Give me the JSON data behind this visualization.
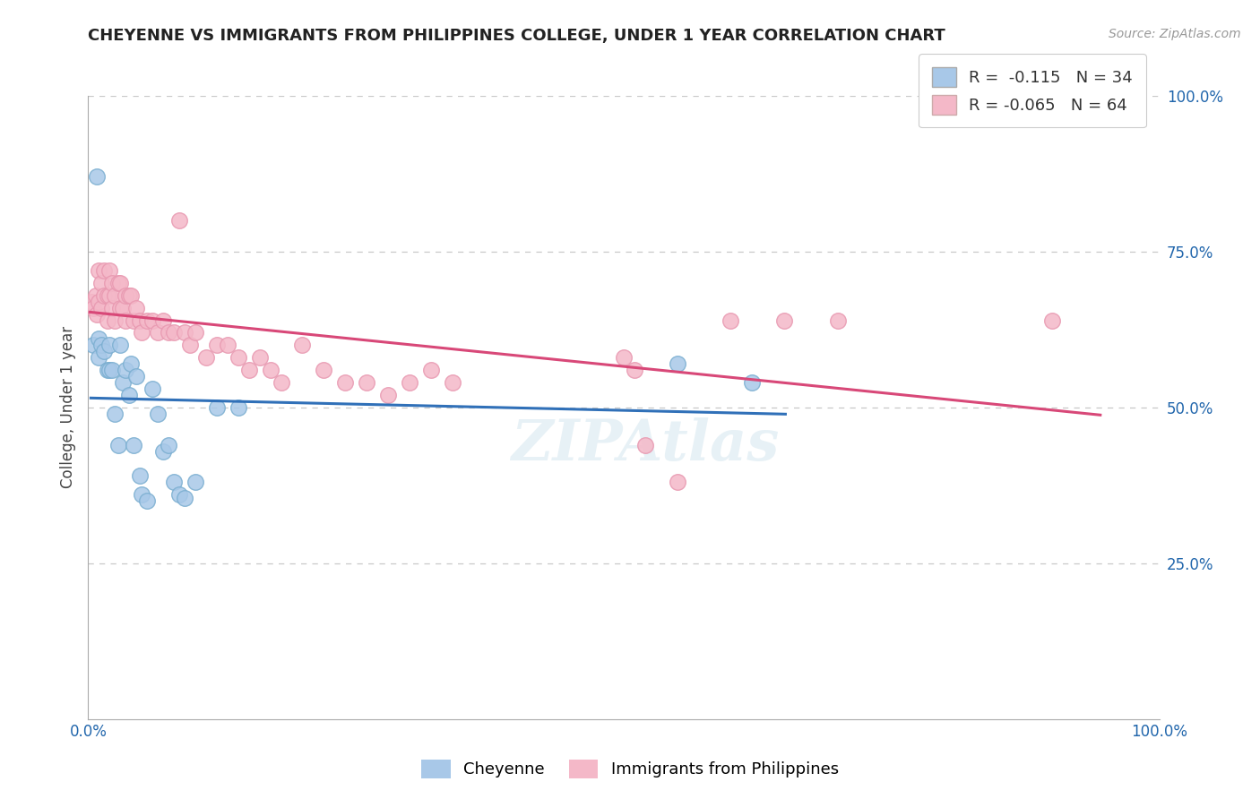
{
  "title": "CHEYENNE VS IMMIGRANTS FROM PHILIPPINES COLLEGE, UNDER 1 YEAR CORRELATION CHART",
  "source": "Source: ZipAtlas.com",
  "ylabel": "College, Under 1 year",
  "xlim": [
    0.0,
    1.0
  ],
  "ylim": [
    0.0,
    1.0
  ],
  "legend1_r": "-0.115",
  "legend1_n": "34",
  "legend2_r": "-0.065",
  "legend2_n": "64",
  "blue_color": "#a8c8e8",
  "pink_color": "#f4b8c8",
  "blue_edge_color": "#7aaed0",
  "pink_edge_color": "#e898b0",
  "blue_line_color": "#3070b8",
  "pink_line_color": "#d84878",
  "cheyenne_x": [
    0.005,
    0.008,
    0.01,
    0.01,
    0.012,
    0.015,
    0.018,
    0.02,
    0.02,
    0.022,
    0.025,
    0.028,
    0.03,
    0.032,
    0.035,
    0.038,
    0.04,
    0.042,
    0.045,
    0.048,
    0.05,
    0.055,
    0.06,
    0.065,
    0.07,
    0.075,
    0.08,
    0.085,
    0.09,
    0.1,
    0.12,
    0.14,
    0.55,
    0.62
  ],
  "cheyenne_y": [
    0.6,
    0.87,
    0.61,
    0.58,
    0.6,
    0.59,
    0.56,
    0.56,
    0.6,
    0.56,
    0.49,
    0.44,
    0.6,
    0.54,
    0.56,
    0.52,
    0.57,
    0.44,
    0.55,
    0.39,
    0.36,
    0.35,
    0.53,
    0.49,
    0.43,
    0.44,
    0.38,
    0.36,
    0.355,
    0.38,
    0.5,
    0.5,
    0.57,
    0.54
  ],
  "philippines_x": [
    0.003,
    0.005,
    0.007,
    0.008,
    0.01,
    0.01,
    0.012,
    0.012,
    0.015,
    0.015,
    0.018,
    0.018,
    0.02,
    0.02,
    0.022,
    0.022,
    0.025,
    0.025,
    0.028,
    0.03,
    0.03,
    0.032,
    0.035,
    0.035,
    0.038,
    0.04,
    0.042,
    0.045,
    0.048,
    0.05,
    0.055,
    0.06,
    0.065,
    0.07,
    0.075,
    0.08,
    0.085,
    0.09,
    0.095,
    0.1,
    0.11,
    0.12,
    0.13,
    0.14,
    0.15,
    0.16,
    0.17,
    0.18,
    0.2,
    0.22,
    0.24,
    0.26,
    0.28,
    0.3,
    0.32,
    0.34,
    0.5,
    0.51,
    0.52,
    0.55,
    0.6,
    0.65,
    0.7,
    0.9
  ],
  "philippines_y": [
    0.67,
    0.66,
    0.68,
    0.65,
    0.72,
    0.67,
    0.7,
    0.66,
    0.72,
    0.68,
    0.68,
    0.64,
    0.72,
    0.68,
    0.7,
    0.66,
    0.68,
    0.64,
    0.7,
    0.7,
    0.66,
    0.66,
    0.68,
    0.64,
    0.68,
    0.68,
    0.64,
    0.66,
    0.64,
    0.62,
    0.64,
    0.64,
    0.62,
    0.64,
    0.62,
    0.62,
    0.8,
    0.62,
    0.6,
    0.62,
    0.58,
    0.6,
    0.6,
    0.58,
    0.56,
    0.58,
    0.56,
    0.54,
    0.6,
    0.56,
    0.54,
    0.54,
    0.52,
    0.54,
    0.56,
    0.54,
    0.58,
    0.56,
    0.44,
    0.38,
    0.64,
    0.64,
    0.64,
    0.64
  ],
  "watermark": "ZIPAtlas",
  "background_color": "#ffffff"
}
